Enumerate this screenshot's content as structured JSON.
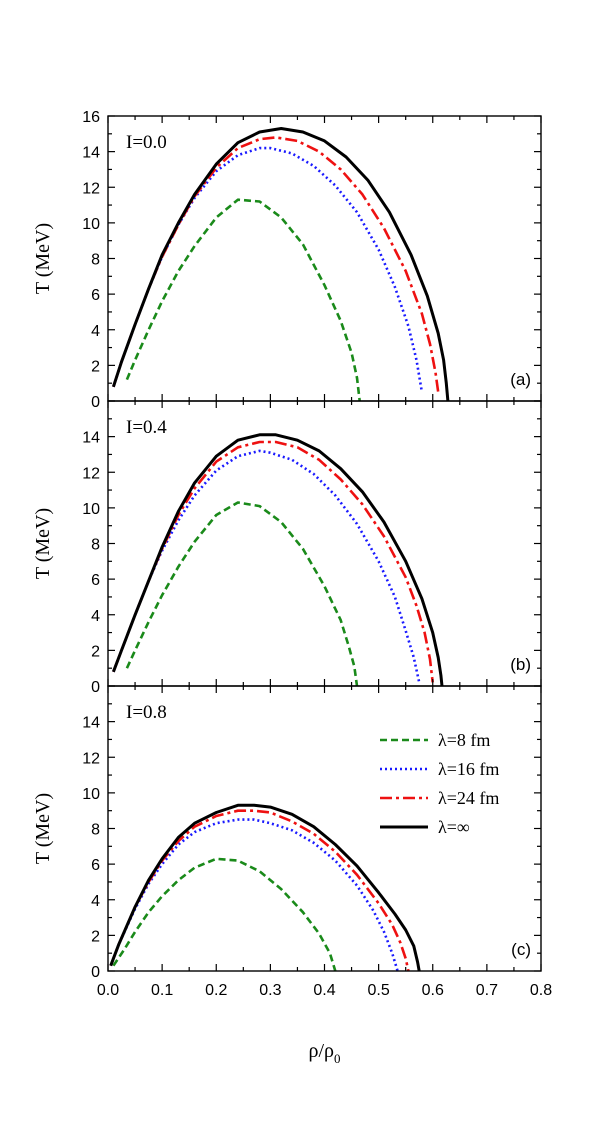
{
  "chart_data": {
    "type": "line",
    "xlabel": "ρ/ρ",
    "xlabel_sub": "0",
    "ylabel": "T (MeV)",
    "xlim": [
      0.0,
      0.8
    ],
    "xticks": [
      "0.0",
      "0.1",
      "0.2",
      "0.3",
      "0.4",
      "0.5",
      "0.6",
      "0.7",
      "0.8"
    ],
    "legend_panel": 2,
    "series_styles": [
      {
        "name": "λ=8 fm",
        "color": "#1a8a1a",
        "dash": "7,4"
      },
      {
        "name": "λ=16 fm",
        "color": "#1a1aff",
        "dash": "2,3"
      },
      {
        "name": "λ=24 fm",
        "color": "#ee1111",
        "dash": "12,4,3,4"
      },
      {
        "name": "λ=∞",
        "color": "#000000",
        "dash": ""
      }
    ],
    "panels": [
      {
        "annotation": "I=0.0",
        "tag": "(a)",
        "ylim": [
          0,
          16
        ],
        "yticks": [
          "0",
          "2",
          "4",
          "6",
          "8",
          "10",
          "12",
          "14",
          "16"
        ],
        "series": [
          {
            "name": "λ=8 fm",
            "x": [
              0.035,
              0.05,
              0.075,
              0.1,
              0.13,
              0.16,
              0.2,
              0.24,
              0.28,
              0.32,
              0.36,
              0.4,
              0.43,
              0.45,
              0.46,
              0.465
            ],
            "y": [
              1.2,
              2.3,
              4.0,
              5.6,
              7.3,
              8.7,
              10.3,
              11.3,
              11.2,
              10.3,
              8.8,
              6.5,
              4.5,
              2.7,
              1.3,
              0.0
            ]
          },
          {
            "name": "λ=16 fm",
            "x": [
              0.01,
              0.025,
              0.05,
              0.075,
              0.1,
              0.13,
              0.16,
              0.2,
              0.24,
              0.28,
              0.3,
              0.34,
              0.38,
              0.42,
              0.46,
              0.5,
              0.53,
              0.555,
              0.57,
              0.58
            ],
            "y": [
              0.8,
              2.2,
              4.3,
              6.3,
              8.1,
              9.9,
              11.4,
              12.9,
              13.8,
              14.2,
              14.2,
              13.9,
              13.2,
              12.1,
              10.6,
              8.5,
              6.4,
              4.2,
              2.3,
              0.5
            ]
          },
          {
            "name": "λ=24 fm",
            "x": [
              0.01,
              0.025,
              0.05,
              0.075,
              0.1,
              0.13,
              0.16,
              0.2,
              0.24,
              0.28,
              0.31,
              0.35,
              0.39,
              0.43,
              0.47,
              0.51,
              0.55,
              0.58,
              0.595,
              0.605,
              0.61
            ],
            "y": [
              0.8,
              2.2,
              4.3,
              6.3,
              8.1,
              9.9,
              11.5,
              13.1,
              14.2,
              14.7,
              14.8,
              14.6,
              14.0,
              13.0,
              11.6,
              9.7,
              7.3,
              4.9,
              3.2,
              1.6,
              0.5
            ]
          },
          {
            "name": "λ=∞",
            "x": [
              0.01,
              0.025,
              0.05,
              0.075,
              0.1,
              0.13,
              0.16,
              0.2,
              0.24,
              0.28,
              0.32,
              0.36,
              0.4,
              0.44,
              0.48,
              0.52,
              0.56,
              0.59,
              0.61,
              0.62,
              0.625,
              0.628
            ],
            "y": [
              0.8,
              2.2,
              4.3,
              6.3,
              8.2,
              10.0,
              11.6,
              13.3,
              14.5,
              15.1,
              15.3,
              15.1,
              14.6,
              13.7,
              12.4,
              10.6,
              8.2,
              5.9,
              3.8,
              2.3,
              1.0,
              0.0
            ]
          }
        ]
      },
      {
        "annotation": "I=0.4",
        "tag": "(b)",
        "ylim": [
          0,
          16
        ],
        "yticks": [
          "0",
          "2",
          "4",
          "6",
          "8",
          "10",
          "12",
          "14",
          ""
        ],
        "series": [
          {
            "name": "λ=8 fm",
            "x": [
              0.035,
              0.05,
              0.075,
              0.1,
              0.13,
              0.16,
              0.2,
              0.24,
              0.28,
              0.32,
              0.36,
              0.4,
              0.43,
              0.445,
              0.455,
              0.46
            ],
            "y": [
              1.0,
              2.0,
              3.6,
              5.1,
              6.7,
              8.1,
              9.6,
              10.3,
              10.1,
              9.2,
              7.7,
              5.6,
              3.7,
              2.2,
              1.1,
              0.0
            ]
          },
          {
            "name": "λ=16 fm",
            "x": [
              0.01,
              0.025,
              0.05,
              0.075,
              0.1,
              0.13,
              0.16,
              0.2,
              0.24,
              0.28,
              0.3,
              0.34,
              0.38,
              0.42,
              0.46,
              0.5,
              0.53,
              0.55,
              0.565,
              0.575
            ],
            "y": [
              0.8,
              2.0,
              4.0,
              5.9,
              7.6,
              9.3,
              10.7,
              12.1,
              12.9,
              13.2,
              13.1,
              12.7,
              11.9,
              10.7,
              9.1,
              7.0,
              5.0,
              3.1,
              1.6,
              0.2
            ]
          },
          {
            "name": "λ=24 fm",
            "x": [
              0.01,
              0.025,
              0.05,
              0.075,
              0.1,
              0.13,
              0.16,
              0.2,
              0.24,
              0.28,
              0.31,
              0.35,
              0.39,
              0.43,
              0.47,
              0.51,
              0.55,
              0.57,
              0.585,
              0.595,
              0.6
            ],
            "y": [
              0.8,
              2.0,
              4.0,
              5.9,
              7.7,
              9.6,
              11.1,
              12.6,
              13.4,
              13.7,
              13.7,
              13.4,
              12.7,
              11.6,
              10.2,
              8.4,
              6.1,
              4.5,
              3.0,
              1.5,
              0.2
            ]
          },
          {
            "name": "λ=∞",
            "x": [
              0.01,
              0.025,
              0.05,
              0.075,
              0.1,
              0.13,
              0.16,
              0.2,
              0.24,
              0.28,
              0.31,
              0.35,
              0.39,
              0.43,
              0.47,
              0.51,
              0.55,
              0.58,
              0.6,
              0.61,
              0.615,
              0.617
            ],
            "y": [
              0.8,
              2.0,
              4.0,
              5.9,
              7.8,
              9.8,
              11.4,
              12.9,
              13.8,
              14.1,
              14.1,
              13.8,
              13.2,
              12.2,
              10.9,
              9.2,
              7.0,
              4.9,
              3.0,
              1.6,
              0.6,
              0.0
            ]
          }
        ]
      },
      {
        "annotation": "I=0.8",
        "tag": "(c)",
        "ylim": [
          0,
          16
        ],
        "yticks": [
          "0",
          "2",
          "4",
          "6",
          "8",
          "10",
          "12",
          "14",
          ""
        ],
        "series": [
          {
            "name": "λ=8 fm",
            "x": [
              0.01,
              0.03,
              0.05,
              0.075,
              0.1,
              0.13,
              0.16,
              0.2,
              0.24,
              0.28,
              0.32,
              0.36,
              0.39,
              0.41,
              0.42
            ],
            "y": [
              0.3,
              1.2,
              2.2,
              3.3,
              4.2,
              5.1,
              5.8,
              6.3,
              6.2,
              5.6,
              4.6,
              3.3,
              2.1,
              1.0,
              0.0
            ]
          },
          {
            "name": "λ=16 fm",
            "x": [
              0.005,
              0.02,
              0.05,
              0.075,
              0.1,
              0.13,
              0.16,
              0.2,
              0.24,
              0.27,
              0.3,
              0.34,
              0.38,
              0.42,
              0.46,
              0.49,
              0.51,
              0.525,
              0.535
            ],
            "y": [
              0.3,
              1.5,
              3.5,
              4.9,
              6.0,
              7.1,
              7.8,
              8.3,
              8.5,
              8.5,
              8.3,
              7.9,
              7.2,
              6.2,
              4.8,
              3.4,
              2.2,
              1.0,
              0.0
            ]
          },
          {
            "name": "λ=24 fm",
            "x": [
              0.005,
              0.02,
              0.05,
              0.075,
              0.1,
              0.13,
              0.16,
              0.2,
              0.24,
              0.27,
              0.3,
              0.34,
              0.38,
              0.42,
              0.46,
              0.5,
              0.525,
              0.54,
              0.55,
              0.555
            ],
            "y": [
              0.3,
              1.5,
              3.6,
              5.0,
              6.2,
              7.3,
              8.1,
              8.7,
              9.0,
              9.0,
              8.9,
              8.4,
              7.7,
              6.7,
              5.4,
              3.8,
              2.6,
              1.6,
              0.7,
              0.0
            ]
          },
          {
            "name": "λ=∞",
            "x": [
              0.005,
              0.02,
              0.05,
              0.075,
              0.1,
              0.13,
              0.16,
              0.2,
              0.24,
              0.27,
              0.3,
              0.34,
              0.38,
              0.42,
              0.46,
              0.5,
              0.53,
              0.55,
              0.565,
              0.572,
              0.575
            ],
            "y": [
              0.3,
              1.5,
              3.6,
              5.1,
              6.3,
              7.5,
              8.3,
              8.9,
              9.3,
              9.3,
              9.2,
              8.8,
              8.1,
              7.1,
              5.9,
              4.4,
              3.2,
              2.3,
              1.4,
              0.5,
              0.0
            ]
          }
        ]
      }
    ]
  }
}
